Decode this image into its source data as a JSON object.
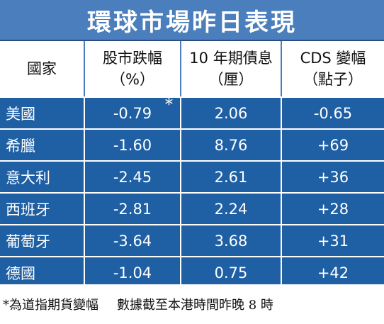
{
  "title": "環球市場昨日表現",
  "headers": [
    {
      "line1": "國家",
      "line2": ""
    },
    {
      "line1": "股市跌幅",
      "line2": "（%）"
    },
    {
      "line1": "10 年期債息",
      "line2": "（厘）"
    },
    {
      "line1": "CDS 變幅",
      "line2": "（點子）"
    }
  ],
  "rows": [
    {
      "country": "美國",
      "stock": "-0.79",
      "bond": "2.06",
      "cds": "-0.65",
      "marker": "*"
    },
    {
      "country": "希臘",
      "stock": "-1.60",
      "bond": "8.76",
      "cds": "+69"
    },
    {
      "country": "意大利",
      "stock": "-2.45",
      "bond": "2.61",
      "cds": "+36"
    },
    {
      "country": "西班牙",
      "stock": "-2.81",
      "bond": "2.24",
      "cds": "+28"
    },
    {
      "country": "葡萄牙",
      "stock": "-3.64",
      "bond": "3.68",
      "cds": "+31"
    },
    {
      "country": "德國",
      "stock": "-1.04",
      "bond": "0.75",
      "cds": "+42"
    }
  ],
  "footnote": {
    "left": "*為道指期貨變幅",
    "right": "數據截至本港時間昨晚 8 時"
  },
  "colors": {
    "title_bg": "#4a7ebc",
    "row_bg": "#1f5fa3",
    "header_bg": "#ffffff"
  }
}
